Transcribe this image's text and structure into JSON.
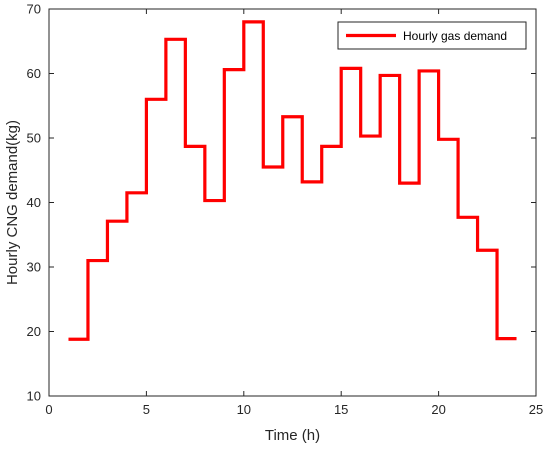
{
  "chart_data": {
    "type": "line",
    "step": true,
    "xlabel": "Time (h)",
    "ylabel": "Hourly CNG demand(kg)",
    "xlim": [
      0,
      25
    ],
    "ylim": [
      10,
      70
    ],
    "xticks": [
      0,
      5,
      10,
      15,
      20,
      25
    ],
    "yticks": [
      10,
      20,
      30,
      40,
      50,
      60,
      70
    ],
    "grid": false,
    "legend_position": "top-right",
    "series": [
      {
        "name": "Hourly gas demand",
        "color": "#ff0000",
        "x": [
          1,
          2,
          3,
          4,
          5,
          6,
          7,
          8,
          9,
          10,
          11,
          12,
          13,
          14,
          15,
          16,
          17,
          18,
          19,
          20,
          21,
          22,
          23,
          24
        ],
        "y": [
          18.8,
          31.0,
          37.1,
          41.5,
          56.0,
          65.3,
          48.7,
          40.3,
          60.6,
          68.0,
          45.5,
          53.3,
          43.2,
          48.7,
          60.8,
          50.3,
          59.7,
          43.0,
          60.4,
          49.8,
          37.7,
          32.6,
          18.9,
          18.9
        ]
      }
    ]
  }
}
